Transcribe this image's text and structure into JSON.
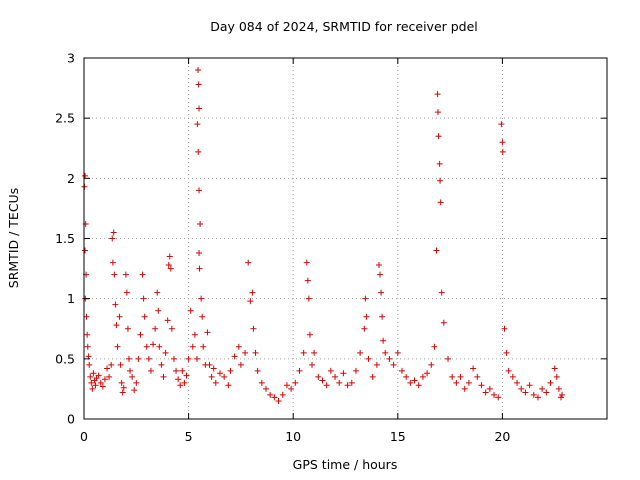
{
  "chart_data": {
    "type": "scatter",
    "title": "Day 084 of 2024, SRMTID for receiver pdel",
    "xlabel": "GPS time / hours",
    "ylabel": "SRMTID / TECUs",
    "xlim": [
      0,
      25
    ],
    "ylim": [
      0,
      3
    ],
    "xticks": [
      0,
      5,
      10,
      15,
      20
    ],
    "yticks": [
      0,
      0.5,
      1,
      1.5,
      2,
      2.5,
      3
    ],
    "xtick_labels": [
      "0",
      "5",
      "10",
      "15",
      "20"
    ],
    "ytick_labels": [
      "0",
      "0.5",
      "1",
      "1.5",
      "2",
      "2.5",
      "3"
    ],
    "grid": true,
    "marker": "+",
    "color": "#e00000",
    "series": [
      {
        "name": "SRMTID",
        "points": [
          [
            0.02,
            1.93
          ],
          [
            0.05,
            2.02
          ],
          [
            0.08,
            1.62
          ],
          [
            0.05,
            1.4
          ],
          [
            0.1,
            1.2
          ],
          [
            0.06,
            1.0
          ],
          [
            0.12,
            0.85
          ],
          [
            0.15,
            0.7
          ],
          [
            0.18,
            0.6
          ],
          [
            0.22,
            0.52
          ],
          [
            0.25,
            0.45
          ],
          [
            0.3,
            0.35
          ],
          [
            0.35,
            0.3
          ],
          [
            0.4,
            0.25
          ],
          [
            0.45,
            0.38
          ],
          [
            0.5,
            0.32
          ],
          [
            0.55,
            0.28
          ],
          [
            0.6,
            0.34
          ],
          [
            0.7,
            0.36
          ],
          [
            0.8,
            0.3
          ],
          [
            0.9,
            0.27
          ],
          [
            1.0,
            0.33
          ],
          [
            1.1,
            0.42
          ],
          [
            1.2,
            0.35
          ],
          [
            1.3,
            0.45
          ],
          [
            1.35,
            1.5
          ],
          [
            1.38,
            1.3
          ],
          [
            1.42,
            1.55
          ],
          [
            1.45,
            1.2
          ],
          [
            1.5,
            0.95
          ],
          [
            1.55,
            0.78
          ],
          [
            1.6,
            0.6
          ],
          [
            1.7,
            0.85
          ],
          [
            1.75,
            0.45
          ],
          [
            1.8,
            0.3
          ],
          [
            1.85,
            0.22
          ],
          [
            1.9,
            0.26
          ],
          [
            2.0,
            1.2
          ],
          [
            2.05,
            1.05
          ],
          [
            2.1,
            0.75
          ],
          [
            2.15,
            0.5
          ],
          [
            2.2,
            0.4
          ],
          [
            2.3,
            0.35
          ],
          [
            2.4,
            0.24
          ],
          [
            2.5,
            0.3
          ],
          [
            2.6,
            0.5
          ],
          [
            2.7,
            0.7
          ],
          [
            2.8,
            1.2
          ],
          [
            2.85,
            1.0
          ],
          [
            2.9,
            0.85
          ],
          [
            3.0,
            0.6
          ],
          [
            3.1,
            0.5
          ],
          [
            3.2,
            0.4
          ],
          [
            3.3,
            0.62
          ],
          [
            3.4,
            0.75
          ],
          [
            3.5,
            1.05
          ],
          [
            3.55,
            0.9
          ],
          [
            3.6,
            0.6
          ],
          [
            3.7,
            0.45
          ],
          [
            3.8,
            0.35
          ],
          [
            3.9,
            0.55
          ],
          [
            4.0,
            0.82
          ],
          [
            4.05,
            1.28
          ],
          [
            4.1,
            1.35
          ],
          [
            4.15,
            1.25
          ],
          [
            4.2,
            0.75
          ],
          [
            4.3,
            0.5
          ],
          [
            4.4,
            0.4
          ],
          [
            4.5,
            0.33
          ],
          [
            4.6,
            0.28
          ],
          [
            4.7,
            0.4
          ],
          [
            4.8,
            0.3
          ],
          [
            4.9,
            0.36
          ],
          [
            5.0,
            0.5
          ],
          [
            5.1,
            0.9
          ],
          [
            5.2,
            0.6
          ],
          [
            5.3,
            0.7
          ],
          [
            5.4,
            0.5
          ],
          [
            5.45,
            2.9
          ],
          [
            5.48,
            2.78
          ],
          [
            5.5,
            2.58
          ],
          [
            5.42,
            2.45
          ],
          [
            5.46,
            2.22
          ],
          [
            5.5,
            1.9
          ],
          [
            5.55,
            1.62
          ],
          [
            5.5,
            1.38
          ],
          [
            5.52,
            1.25
          ],
          [
            5.6,
            1.0
          ],
          [
            5.65,
            0.85
          ],
          [
            5.7,
            0.6
          ],
          [
            5.8,
            0.45
          ],
          [
            5.9,
            0.72
          ],
          [
            6.0,
            0.45
          ],
          [
            6.1,
            0.35
          ],
          [
            6.2,
            0.42
          ],
          [
            6.3,
            0.3
          ],
          [
            6.5,
            0.38
          ],
          [
            6.7,
            0.35
          ],
          [
            6.9,
            0.28
          ],
          [
            7.0,
            0.4
          ],
          [
            7.2,
            0.52
          ],
          [
            7.4,
            0.6
          ],
          [
            7.5,
            0.45
          ],
          [
            7.7,
            0.55
          ],
          [
            7.85,
            1.3
          ],
          [
            7.95,
            0.98
          ],
          [
            8.05,
            1.05
          ],
          [
            8.1,
            0.75
          ],
          [
            8.2,
            0.55
          ],
          [
            8.3,
            0.4
          ],
          [
            8.5,
            0.3
          ],
          [
            8.7,
            0.25
          ],
          [
            8.9,
            0.2
          ],
          [
            9.1,
            0.18
          ],
          [
            9.3,
            0.15
          ],
          [
            9.5,
            0.2
          ],
          [
            9.7,
            0.28
          ],
          [
            9.9,
            0.25
          ],
          [
            10.1,
            0.3
          ],
          [
            10.3,
            0.4
          ],
          [
            10.5,
            0.55
          ],
          [
            10.65,
            1.3
          ],
          [
            10.7,
            1.15
          ],
          [
            10.75,
            1.0
          ],
          [
            10.8,
            0.7
          ],
          [
            10.9,
            0.45
          ],
          [
            11.0,
            0.55
          ],
          [
            11.2,
            0.35
          ],
          [
            11.4,
            0.32
          ],
          [
            11.6,
            0.28
          ],
          [
            11.8,
            0.4
          ],
          [
            12.0,
            0.35
          ],
          [
            12.2,
            0.3
          ],
          [
            12.4,
            0.38
          ],
          [
            12.6,
            0.28
          ],
          [
            12.8,
            0.3
          ],
          [
            13.0,
            0.4
          ],
          [
            13.2,
            0.55
          ],
          [
            13.4,
            0.75
          ],
          [
            13.45,
            1.0
          ],
          [
            13.5,
            0.85
          ],
          [
            13.6,
            0.5
          ],
          [
            13.8,
            0.35
          ],
          [
            14.0,
            0.45
          ],
          [
            14.1,
            1.28
          ],
          [
            14.15,
            1.2
          ],
          [
            14.2,
            1.05
          ],
          [
            14.25,
            0.85
          ],
          [
            14.3,
            0.65
          ],
          [
            14.4,
            0.55
          ],
          [
            14.6,
            0.5
          ],
          [
            14.8,
            0.45
          ],
          [
            15.0,
            0.55
          ],
          [
            15.2,
            0.4
          ],
          [
            15.4,
            0.35
          ],
          [
            15.6,
            0.3
          ],
          [
            15.8,
            0.32
          ],
          [
            16.0,
            0.28
          ],
          [
            16.2,
            0.35
          ],
          [
            16.4,
            0.38
          ],
          [
            16.6,
            0.45
          ],
          [
            16.75,
            0.6
          ],
          [
            16.85,
            1.4
          ],
          [
            16.9,
            2.7
          ],
          [
            16.92,
            2.55
          ],
          [
            16.95,
            2.35
          ],
          [
            17.0,
            2.12
          ],
          [
            17.02,
            1.98
          ],
          [
            17.05,
            1.8
          ],
          [
            17.1,
            1.05
          ],
          [
            17.2,
            0.8
          ],
          [
            17.4,
            0.5
          ],
          [
            17.6,
            0.35
          ],
          [
            17.8,
            0.3
          ],
          [
            18.0,
            0.35
          ],
          [
            18.2,
            0.25
          ],
          [
            18.4,
            0.3
          ],
          [
            18.6,
            0.42
          ],
          [
            18.8,
            0.35
          ],
          [
            19.0,
            0.28
          ],
          [
            19.2,
            0.22
          ],
          [
            19.4,
            0.25
          ],
          [
            19.6,
            0.2
          ],
          [
            19.8,
            0.18
          ],
          [
            19.95,
            2.45
          ],
          [
            20.0,
            2.3
          ],
          [
            20.02,
            2.22
          ],
          [
            20.1,
            0.75
          ],
          [
            20.2,
            0.55
          ],
          [
            20.3,
            0.4
          ],
          [
            20.5,
            0.35
          ],
          [
            20.7,
            0.3
          ],
          [
            20.9,
            0.25
          ],
          [
            21.1,
            0.22
          ],
          [
            21.3,
            0.28
          ],
          [
            21.5,
            0.2
          ],
          [
            21.7,
            0.18
          ],
          [
            21.9,
            0.25
          ],
          [
            22.1,
            0.22
          ],
          [
            22.3,
            0.3
          ],
          [
            22.5,
            0.42
          ],
          [
            22.6,
            0.35
          ],
          [
            22.7,
            0.25
          ],
          [
            22.8,
            0.18
          ],
          [
            22.85,
            0.2
          ]
        ]
      }
    ]
  }
}
